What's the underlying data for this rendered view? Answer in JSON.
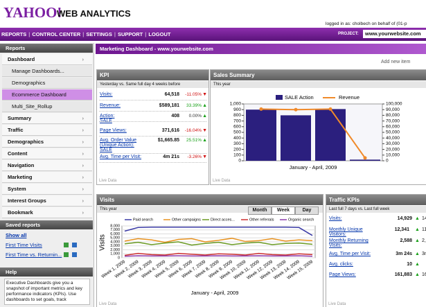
{
  "header": {
    "logo": "YAHOO!",
    "product": "WEB ANALYTICS",
    "login": "logged in as: cholbech on behalf of (01-p"
  },
  "nav": {
    "items": [
      "REPORTS",
      "CONTROL CENTER",
      "SETTINGS",
      "SUPPORT",
      "LOGOUT"
    ],
    "project_label": "PROJECT:",
    "project": "www.yourwebsite.com"
  },
  "sidebar": {
    "title": "Reports",
    "items": [
      {
        "label": "Dashboard",
        "bold": true
      },
      {
        "label": "Manage Dashboards...",
        "bold": false
      },
      {
        "label": "Demographics",
        "bold": false
      },
      {
        "label": "Ecommerce Dashboard",
        "bold": false,
        "selected": true
      },
      {
        "label": "Multi_Site_Rollup",
        "bold": false
      },
      {
        "label": "Summary",
        "bold": true
      },
      {
        "label": "Traffic",
        "bold": true
      },
      {
        "label": "Demographics",
        "bold": true
      },
      {
        "label": "Content",
        "bold": true
      },
      {
        "label": "Navigation",
        "bold": true
      },
      {
        "label": "Marketing",
        "bold": true
      },
      {
        "label": "System",
        "bold": true
      },
      {
        "label": "Interest Groups",
        "bold": true
      },
      {
        "label": "Bookmark",
        "bold": true
      }
    ],
    "saved_title": "Saved reports",
    "saved": [
      "Show all",
      "First Time Visits",
      "First Time vs. Returnin..."
    ],
    "help_title": "Help",
    "help": "Executive Dashboards give you a snapshot of important metrics and key performance indicators (KPIs). Use dashboards to set goals, track"
  },
  "dashboard": {
    "title": "Marketing Dashboard - www.yourwebsite.com",
    "add": "Add new item",
    "kpi": {
      "title": "KPI",
      "subtitle": "Yesterday vs. Same full day 4 weeks before",
      "footer": "Live Data",
      "rows": [
        {
          "label": "Visits:",
          "value": "64,518",
          "change": "-11.05%"
        },
        {
          "label": "Revenue:",
          "value": "$589,181",
          "change": "33.39%"
        },
        {
          "label": "Action:\nSALE",
          "value": "408",
          "change": "0.00%"
        },
        {
          "label": "Page Views:",
          "value": "371,616",
          "change": "-16.04%"
        },
        {
          "label": "Avg. Order Value (Unique Action): SALE",
          "value": "$1,665.85",
          "change": "25.51%"
        },
        {
          "label": "Avg. Time per Visit:",
          "value": "4m 21s",
          "change": "-3.26%"
        }
      ]
    },
    "sales_summary": {
      "title": "Sales Summary",
      "subtitle": "This year",
      "footer": "Live Data",
      "chart_data": {
        "type": "bar",
        "xlabel": "January - April, 2009",
        "categories": [
          null,
          null,
          null,
          null
        ],
        "series": [
          {
            "name": "SALE Action",
            "color": "#2b1f7e",
            "type": "bar",
            "values": [
              900,
              800,
              910,
              20
            ]
          },
          {
            "name": "Revenue",
            "color": "#f08a2a",
            "type": "line",
            "axis": "y2",
            "values": [
              91000,
              90000,
              91000,
              5000
            ]
          }
        ],
        "ylim": [
          0,
          1000
        ],
        "yticks": [
          0,
          100,
          200,
          300,
          400,
          500,
          600,
          700,
          800,
          900,
          {
            "value": 1000,
            "label": "1,000"
          }
        ],
        "y2lim": [
          0,
          100000
        ],
        "y2ticks": [
          0,
          {
            "value": 10000,
            "label": "10,000"
          },
          {
            "value": 20000,
            "label": "20,000"
          },
          {
            "value": 30000,
            "label": "30,000"
          },
          {
            "value": 40000,
            "label": "40,000"
          },
          {
            "value": 50000,
            "label": "50,000"
          },
          {
            "value": 60000,
            "label": "60,000"
          },
          {
            "value": 70000,
            "label": "70,000"
          },
          {
            "value": 80000,
            "label": "80,000"
          },
          {
            "value": 90000,
            "label": "90,000"
          },
          {
            "value": 100000,
            "label": "100,000"
          }
        ]
      }
    },
    "visits": {
      "title": "Visits",
      "subtitle": "This year",
      "tabs": [
        "Month",
        "Week",
        "Day"
      ],
      "active_tab": "Week",
      "footer": "Live Data",
      "chart_data": {
        "type": "line",
        "ylabel": "Visits",
        "xlabel": "January - April, 2009",
        "categories": [
          "Week 1, 2009",
          "Week 2, 2009",
          "Week 3, 2009",
          "Week 4, 2009",
          "Week 5, 2009",
          "Week 6, 2009",
          "Week 7, 2009",
          "Week 8, 2009",
          "Week 9, 2009",
          "Week 10, 2009",
          "Week 11, 2009",
          "Week 12, 2009",
          "Week 13, 2009",
          "Week 14, 2009",
          "Week 15, 2009"
        ],
        "series": [
          {
            "name": "Paid search",
            "color": "#3b3ba6",
            "values": [
              6700,
              7600,
              7700,
              7700,
              7700,
              7700,
              7700,
              7700,
              7700,
              7700,
              7700,
              7700,
              7700,
              7600,
              5600
            ]
          },
          {
            "name": "Other campaigns",
            "color": "#e8921f",
            "values": [
              4200,
              4800,
              4500,
              3900,
              4600,
              4800,
              4000,
              4400,
              4900,
              4100,
              4300,
              4800,
              4200,
              4500,
              4300
            ]
          },
          {
            "name": "Direct acces...",
            "color": "#6a9a22",
            "values": [
              3500,
              3900,
              3300,
              3700,
              4000,
              3200,
              3600,
              3900,
              3300,
              3700,
              3900,
              3300,
              3600,
              3700,
              3400
            ]
          },
          {
            "name": "Other referrals",
            "color": "#cc3030",
            "values": [
              600,
              1100,
              800,
              700,
              1100,
              900,
              700,
              1000,
              900,
              700,
              1100,
              800,
              700,
              1000,
              800
            ]
          },
          {
            "name": "Organic search",
            "color": "#8b3aaa",
            "values": [
              400,
              500,
              450,
              450,
              500,
              450,
              450,
              500,
              450,
              450,
              500,
              450,
              450,
              500,
              400
            ]
          }
        ],
        "ylim": [
          0,
          8000
        ],
        "yticks": [
          0,
          {
            "value": 1000,
            "label": "1,000"
          },
          {
            "value": 2000,
            "label": "2,000"
          },
          {
            "value": 3000,
            "label": "3,000"
          },
          {
            "value": 4000,
            "label": "4,000"
          },
          {
            "value": 5000,
            "label": "5,000"
          },
          {
            "value": 6000,
            "label": "6,000"
          },
          {
            "value": 7000,
            "label": "7,000"
          },
          {
            "value": 8000,
            "label": "8,000"
          }
        ],
        "grid": true
      }
    },
    "traffic_kpis": {
      "title": "Traffic KPIs",
      "subtitle": "Last full 7 days vs. Last full week",
      "footer": "Live Data",
      "rows": [
        {
          "label": "Visits:",
          "value": "14,929",
          "previous": "14,"
        },
        {
          "label": "Monthly Unique Visitors:",
          "value": "12,341",
          "previous": "11,"
        },
        {
          "label": "Monthly Returning Visits:",
          "value": "2,588",
          "previous": "2,"
        },
        {
          "label": "Avg. Time per Visit:",
          "value": "3m 24s",
          "previous": "3m"
        },
        {
          "label": "Avg. clicks:",
          "value": "10",
          "previous": ""
        },
        {
          "label": "Page Views:",
          "value": "161,883",
          "previous": "161,"
        }
      ]
    }
  }
}
